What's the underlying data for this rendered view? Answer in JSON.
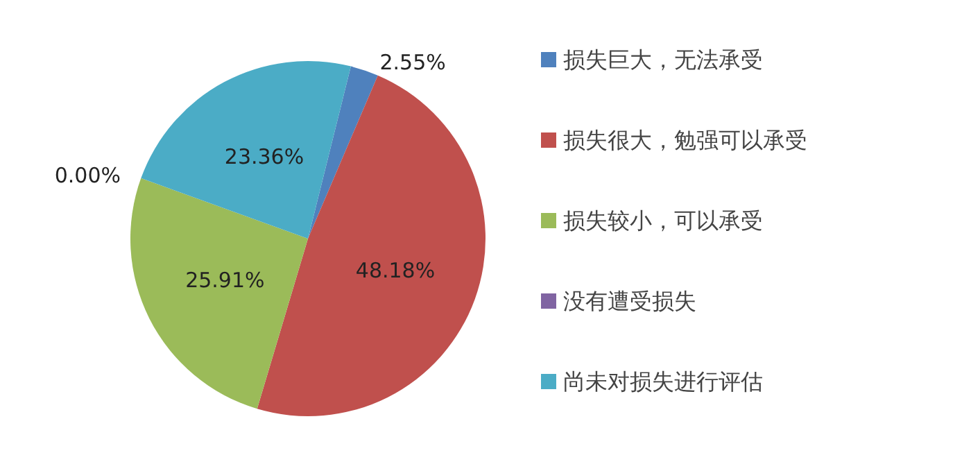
{
  "chart_data": {
    "type": "pie",
    "categories": [
      "损失巨大，无法承受",
      "损失很大，勉强可以承受",
      "损失较小，可以承受",
      "没有遭受损失",
      "尚未对损失进行评估"
    ],
    "values": [
      2.55,
      48.18,
      25.91,
      0,
      23.36
    ],
    "colors": [
      "#4f81bd",
      "#c0504d",
      "#9bbb59",
      "#8064a2",
      "#4bacc6"
    ],
    "value_labels": [
      "2.55%",
      "48.18%",
      "25.91%",
      "0.00%",
      "23.36%"
    ],
    "legend": "right"
  }
}
